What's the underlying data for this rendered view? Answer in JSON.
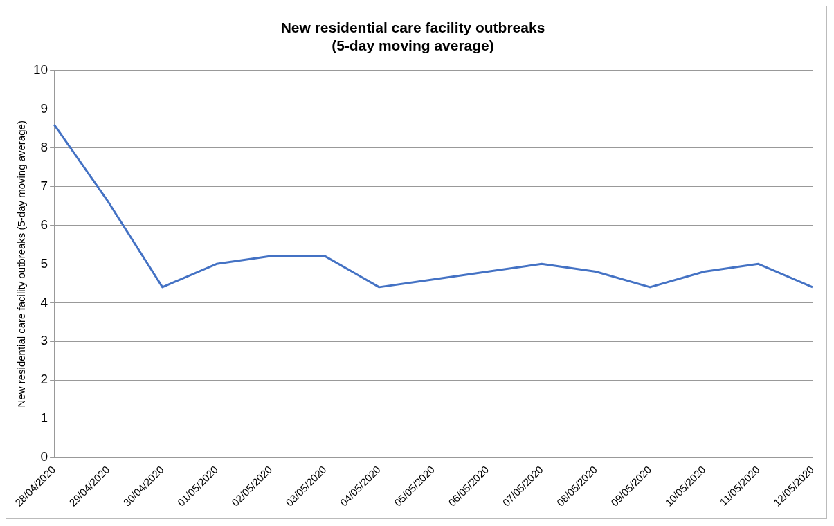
{
  "chart_data": {
    "type": "line",
    "title": [
      "New residential care facility outbreaks",
      "(5-day moving average)"
    ],
    "ylabel": "New residential care facility outbreaks (5-day moving average)",
    "categories": [
      "28/04/2020",
      "29/04/2020",
      "30/04/2020",
      "01/05/2020",
      "02/05/2020",
      "03/05/2020",
      "04/05/2020",
      "05/05/2020",
      "06/05/2020",
      "07/05/2020",
      "08/05/2020",
      "09/05/2020",
      "10/05/2020",
      "11/05/2020",
      "12/05/2020"
    ],
    "series": [
      {
        "color": "#4472c4",
        "values": [
          8.6,
          6.6,
          4.4,
          5.0,
          5.2,
          5.2,
          4.4,
          4.6,
          4.8,
          5.0,
          4.8,
          4.4,
          4.8,
          5.0,
          4.4
        ]
      }
    ],
    "ylim": [
      0,
      10
    ],
    "yticks": [
      0,
      1,
      2,
      3,
      4,
      5,
      6,
      7,
      8,
      9,
      10
    ],
    "grid": "y",
    "legend": false,
    "marker": "none",
    "line_style": "solid"
  }
}
